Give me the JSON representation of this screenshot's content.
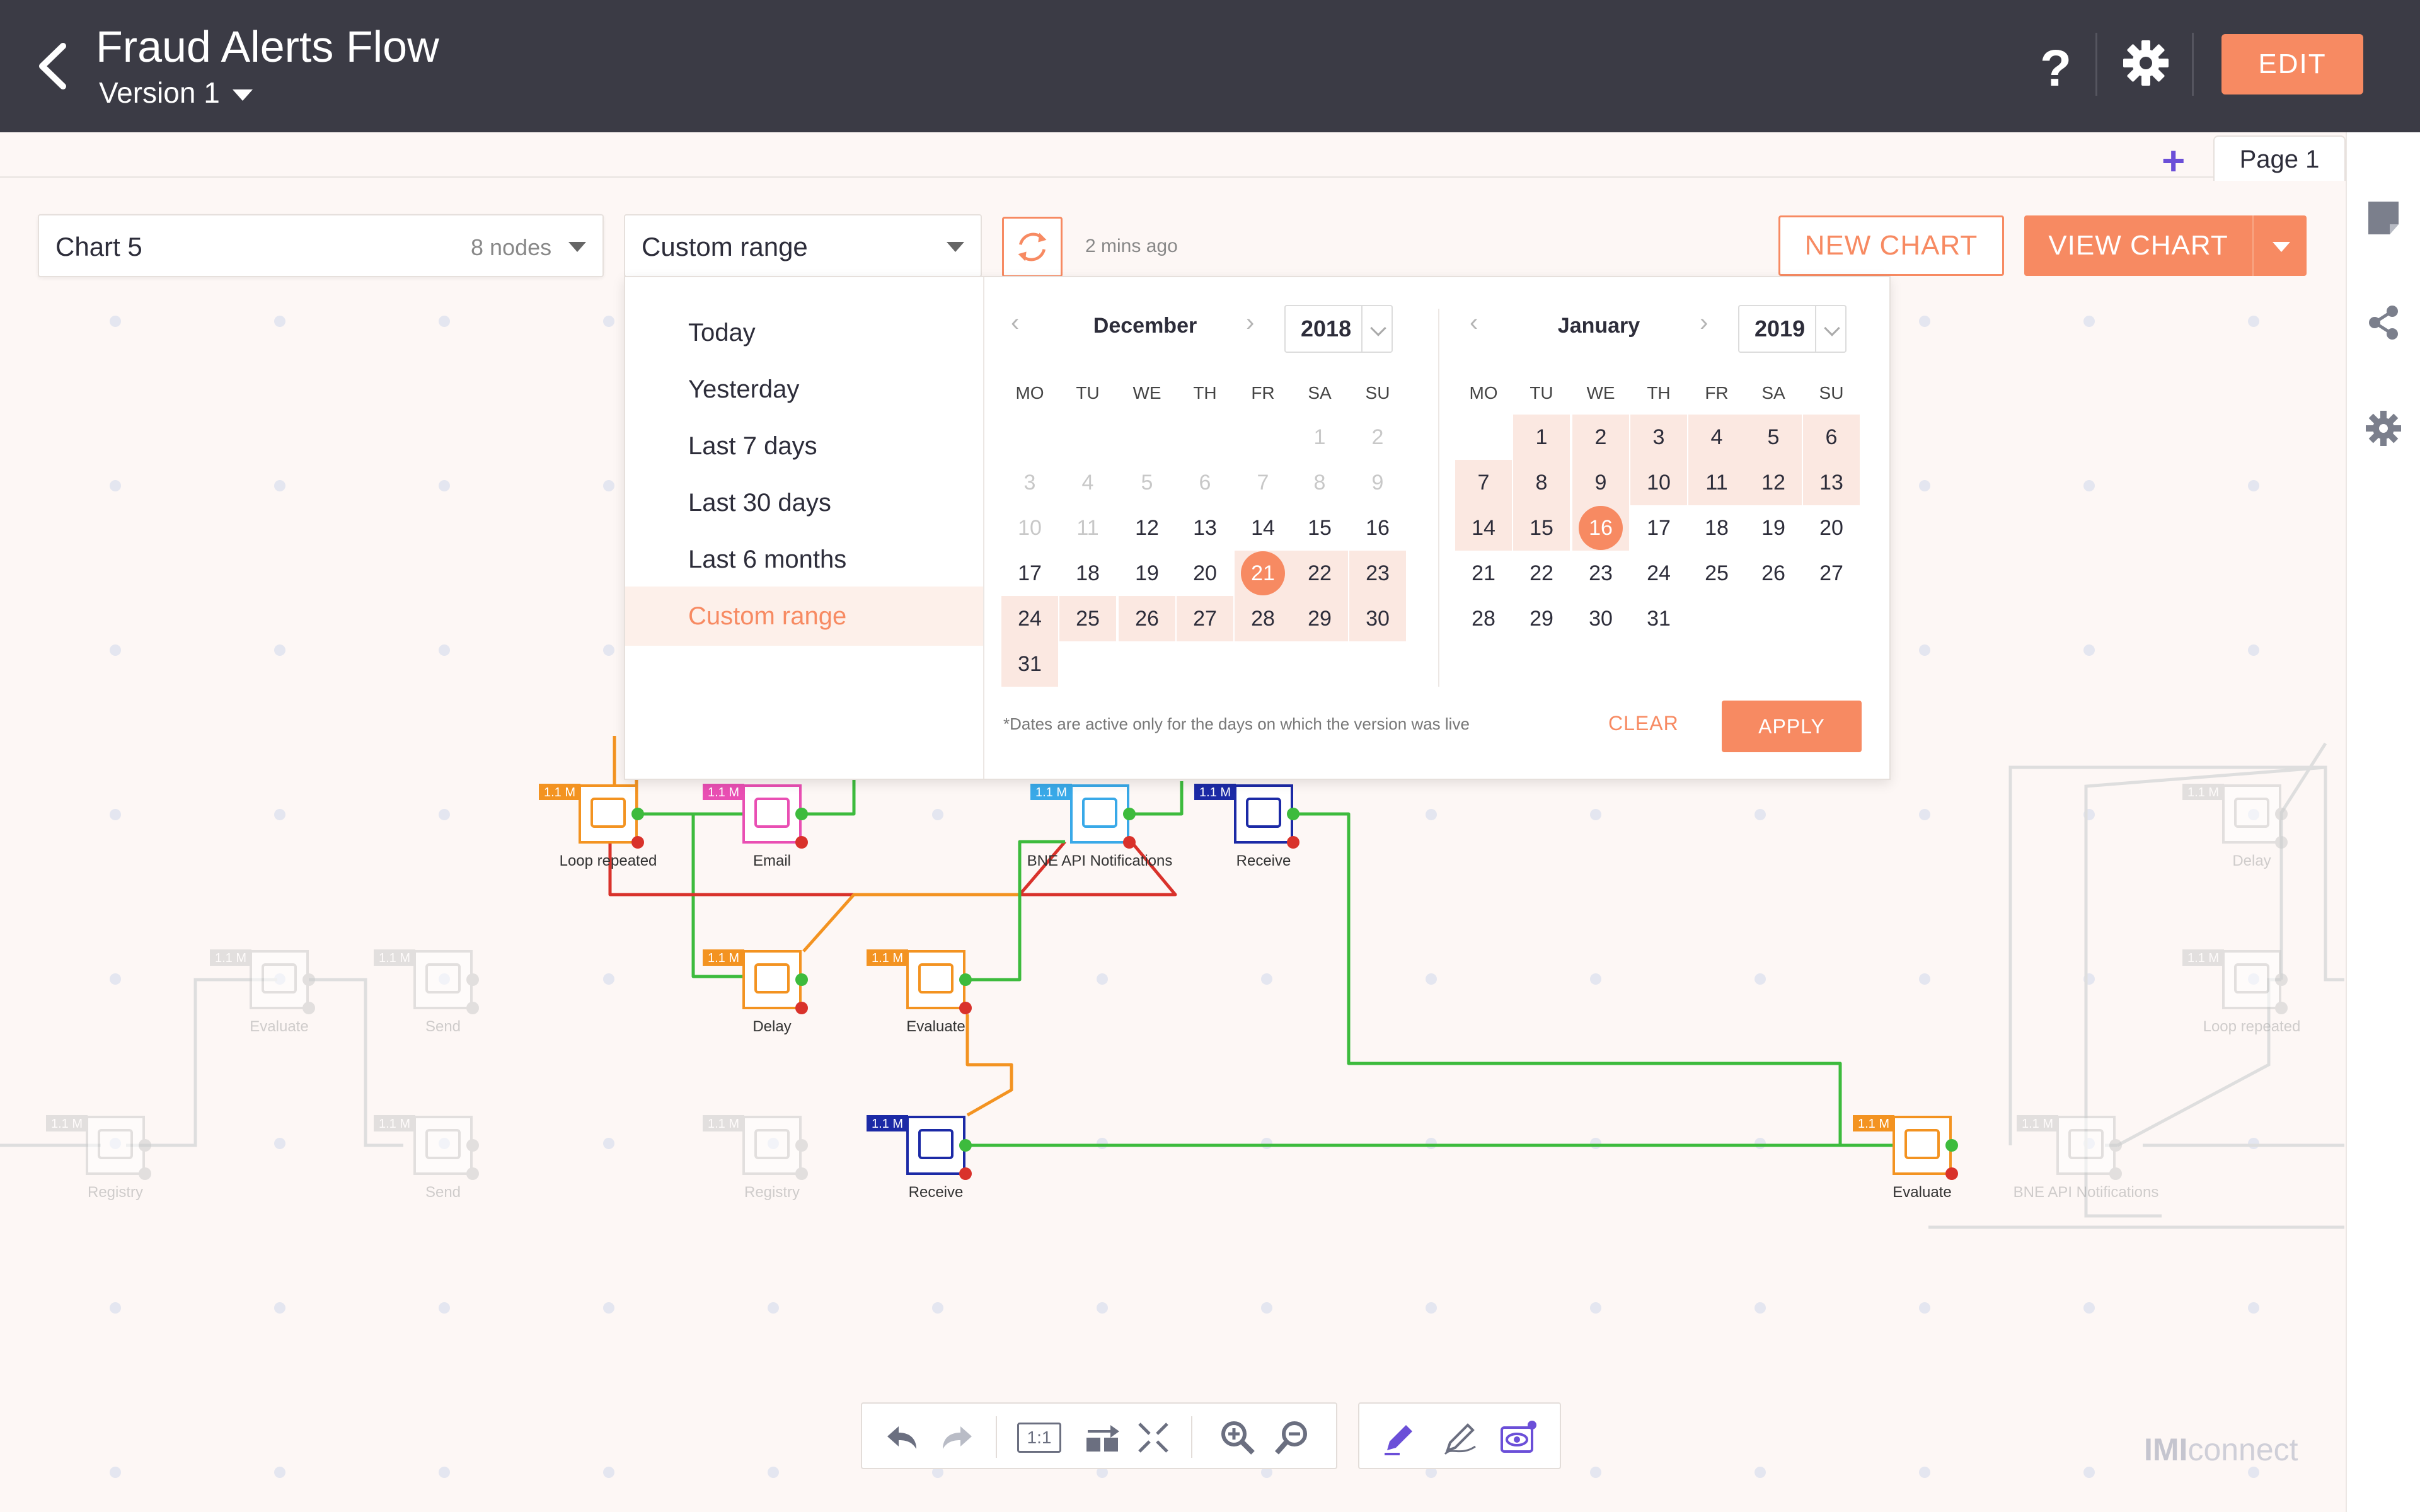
{
  "header": {
    "title": "Fraud Alerts Flow",
    "version": "Version 1",
    "edit_label": "EDIT",
    "help_glyph": "?"
  },
  "tabs": {
    "add_glyph": "+",
    "page_label": "Page 1"
  },
  "controls": {
    "chart_name": "Chart 5",
    "node_count": "8 nodes",
    "range_value": "Custom range",
    "updated_text": "2 mins ago",
    "new_chart_label": "NEW CHART",
    "view_chart_label": "VIEW CHART"
  },
  "presets": [
    "Today",
    "Yesterday",
    "Last 7 days",
    "Last 30 days",
    "Last 6 months",
    "Custom range"
  ],
  "calendar_left": {
    "month": "December",
    "year": "2018",
    "weekdays": [
      "MO",
      "TU",
      "WE",
      "TH",
      "FR",
      "SA",
      "SU"
    ]
  },
  "calendar_right": {
    "month": "January",
    "year": "2019",
    "weekdays": [
      "MO",
      "TU",
      "WE",
      "TH",
      "FR",
      "SA",
      "SU"
    ]
  },
  "range": {
    "start": "December 21 2018",
    "end": "January 16 2019"
  },
  "popup_footer": {
    "note": "*Dates are active only for the days on which the version was live",
    "clear_label": "CLEAR",
    "apply_label": "APPLY"
  },
  "nodes": [
    {
      "label": "Loop repeated",
      "badge": "1.1 M",
      "color": "#f39321"
    },
    {
      "label": "Email",
      "badge": "1.1 M",
      "color": "#e94fb3"
    },
    {
      "label": "BNE API Notifications",
      "badge": "1.1 M",
      "color": "#39a9e8"
    },
    {
      "label": "Receive",
      "badge": "1.1 M",
      "color": "#1c2aa6"
    },
    {
      "label": "Delay",
      "badge": "1.1 M",
      "color": "#f39321"
    },
    {
      "label": "Evaluate",
      "badge": "1.1 M",
      "color": "#f39321"
    },
    {
      "label": "Receive",
      "badge": "1.1 M",
      "color": "#1c2aa6"
    },
    {
      "label": "Evaluate",
      "badge": "1.1 M",
      "color": "#f39321"
    },
    {
      "label": "Evaluate",
      "badge": "1.1 M",
      "color": "#cccccc"
    },
    {
      "label": "Send",
      "badge": "1.1 M",
      "color": "#cccccc"
    },
    {
      "label": "Registry",
      "badge": "1.1 M",
      "color": "#cccccc"
    },
    {
      "label": "Send",
      "badge": "1.1 M",
      "color": "#cccccc"
    },
    {
      "label": "Registry",
      "badge": "1.1 M",
      "color": "#cccccc"
    },
    {
      "label": "Delay",
      "badge": "1.1 M",
      "color": "#cccccc"
    },
    {
      "label": "Loop repeated",
      "badge": "1.1 M",
      "color": "#cccccc"
    },
    {
      "label": "BNE API Notifications",
      "badge": "1.1 M",
      "color": "#cccccc"
    }
  ],
  "toolbar": {
    "fit_label": "1:1"
  },
  "brand": {
    "strong": "IMI",
    "rest": "connect"
  },
  "colors": {
    "accent": "#f78a62",
    "header_bg": "#3b3b45",
    "edge_green": "#3dbb3d",
    "edge_red": "#d9322b",
    "edge_orange": "#f39321"
  }
}
